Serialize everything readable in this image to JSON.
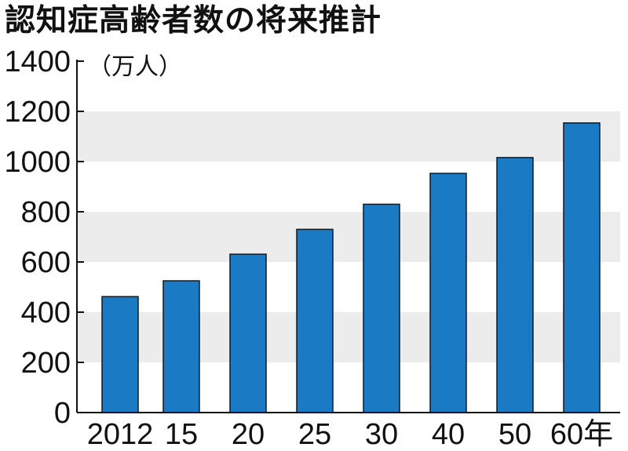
{
  "chart_data": {
    "type": "bar",
    "title": "認知症高齢者数の将来推計",
    "unit_label": "（万人）",
    "categories": [
      "2012",
      "15",
      "20",
      "25",
      "30",
      "40",
      "50",
      "60年"
    ],
    "values": [
      462,
      525,
      631,
      730,
      830,
      953,
      1016,
      1154
    ],
    "ylim": [
      0,
      1400
    ],
    "yticks": [
      0,
      200,
      400,
      600,
      800,
      1000,
      1200,
      1400
    ],
    "xlabel": "",
    "ylabel": "",
    "grid": "alternating horizontal bands",
    "legend": "none"
  },
  "colors": {
    "bar_fill": "#1a7bc4",
    "bar_stroke": "#0d1a26",
    "band": "#ececec",
    "axis": "#111111"
  }
}
